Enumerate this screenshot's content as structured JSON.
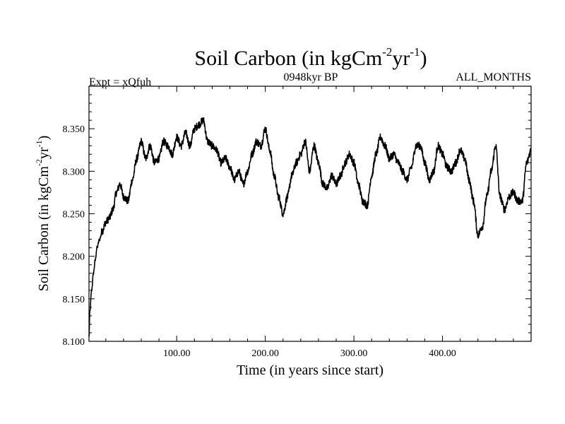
{
  "chart_data": {
    "type": "line",
    "title": {
      "main": "Soil Carbon (in kgCm",
      "exp1": "-2",
      "mid": "yr",
      "exp2": "-1",
      "end": ")"
    },
    "subtitles": {
      "left": "Expt = xQfuh",
      "center": "0948kyr BP",
      "right": "ALL_MONTHS"
    },
    "xlabel": "Time (in years since start)",
    "ylabel": {
      "main": "Soil Carbon (in kgCm",
      "exp1": "-2",
      "mid": "yr",
      "exp2": "-1",
      "end": ")"
    },
    "xlim": [
      1,
      500
    ],
    "ylim": [
      8.1,
      8.4
    ],
    "xticks": [
      100,
      200,
      300,
      400
    ],
    "xtick_labels": [
      "100.00",
      "200.00",
      "300.00",
      "400.00"
    ],
    "yticks": [
      8.1,
      8.15,
      8.2,
      8.25,
      8.3,
      8.35
    ],
    "ytick_labels": [
      "8.100",
      "8.150",
      "8.200",
      "8.250",
      "8.300",
      "8.350"
    ],
    "series": [
      {
        "name": "Soil Carbon",
        "anchors_x": [
          1,
          2,
          4,
          6,
          8,
          10,
          13,
          16,
          20,
          24,
          28,
          32,
          36,
          40,
          45,
          50,
          55,
          60,
          65,
          70,
          75,
          80,
          85,
          90,
          95,
          100,
          105,
          110,
          115,
          120,
          125,
          130,
          135,
          140,
          145,
          150,
          155,
          160,
          165,
          170,
          175,
          180,
          185,
          190,
          195,
          200,
          205,
          210,
          215,
          220,
          225,
          230,
          235,
          240,
          245,
          250,
          255,
          260,
          265,
          270,
          275,
          280,
          285,
          290,
          295,
          300,
          305,
          310,
          315,
          320,
          325,
          330,
          335,
          340,
          345,
          350,
          355,
          360,
          365,
          370,
          375,
          380,
          385,
          390,
          395,
          400,
          405,
          410,
          415,
          420,
          425,
          430,
          435,
          440,
          445,
          450,
          455,
          460,
          465,
          470,
          475,
          480,
          485,
          490,
          495,
          500
        ],
        "anchors_y": [
          8.105,
          8.135,
          8.16,
          8.18,
          8.195,
          8.21,
          8.22,
          8.23,
          8.24,
          8.245,
          8.255,
          8.275,
          8.285,
          8.27,
          8.265,
          8.29,
          8.315,
          8.335,
          8.315,
          8.33,
          8.31,
          8.315,
          8.335,
          8.33,
          8.32,
          8.34,
          8.33,
          8.345,
          8.33,
          8.35,
          8.355,
          8.36,
          8.335,
          8.33,
          8.325,
          8.31,
          8.315,
          8.305,
          8.29,
          8.3,
          8.285,
          8.3,
          8.32,
          8.335,
          8.33,
          8.35,
          8.325,
          8.295,
          8.27,
          8.25,
          8.27,
          8.295,
          8.31,
          8.32,
          8.335,
          8.3,
          8.33,
          8.31,
          8.285,
          8.28,
          8.295,
          8.285,
          8.295,
          8.31,
          8.32,
          8.31,
          8.285,
          8.265,
          8.26,
          8.295,
          8.32,
          8.34,
          8.33,
          8.315,
          8.32,
          8.31,
          8.3,
          8.29,
          8.305,
          8.33,
          8.33,
          8.31,
          8.29,
          8.3,
          8.33,
          8.32,
          8.305,
          8.3,
          8.31,
          8.325,
          8.315,
          8.29,
          8.265,
          8.225,
          8.235,
          8.27,
          8.3,
          8.33,
          8.27,
          8.255,
          8.27,
          8.275,
          8.265,
          8.265,
          8.31,
          8.325
        ]
      }
    ]
  }
}
